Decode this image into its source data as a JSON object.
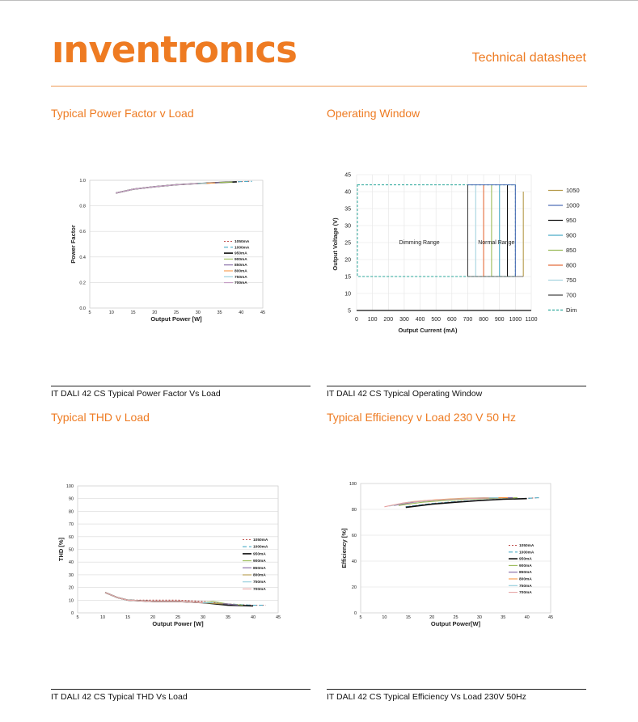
{
  "header": {
    "logo_text": "ınventronıcs",
    "doc_type": "Technical datasheet",
    "accent_color": "#ee7b22"
  },
  "sections": {
    "pf": {
      "title": "Typical Power Factor v Load",
      "caption": "IT DALI 42 CS Typical Power Factor Vs Load"
    },
    "ow": {
      "title": "Operating Window",
      "caption": "IT DALI 42 CS Typical Operating Window"
    },
    "thd": {
      "title": "Typical THD v Load",
      "caption": "IT DALI 42 CS Typical THD Vs Load"
    },
    "eff": {
      "title": "Typical Efficiency v Load 230 V 50 Hz",
      "caption": "IT DALI 42 CS Typical Efficiency Vs Load 230V 50Hz"
    }
  },
  "chart_data": [
    {
      "id": "pf",
      "type": "line",
      "xlabel": "Output Power [W]",
      "ylabel": "Power Factor",
      "xlim": [
        5,
        45
      ],
      "ylim": [
        0,
        1
      ],
      "xticks": [
        "5",
        "10",
        "15",
        "20",
        "25",
        "30",
        "35",
        "40",
        "45"
      ],
      "yticks": [
        "0.0",
        "0.2",
        "0.4",
        "0.6",
        "0.8",
        "1.0"
      ],
      "legend_position": "right",
      "series": [
        {
          "name": "1050mA",
          "color": "#c0504d",
          "dash": "2,2",
          "x": [
            11,
            15,
            20,
            25,
            30,
            35,
            40,
            42
          ],
          "y": [
            0.9,
            0.93,
            0.95,
            0.965,
            0.975,
            0.983,
            0.99,
            0.992
          ]
        },
        {
          "name": "1000mA",
          "color": "#4bacc6",
          "dash": "5,3",
          "x": [
            11,
            15,
            20,
            25,
            30,
            35,
            40,
            42.5
          ],
          "y": [
            0.9,
            0.93,
            0.95,
            0.965,
            0.975,
            0.983,
            0.99,
            0.992
          ]
        },
        {
          "name": "950mA",
          "color": "#111111",
          "dash": "",
          "x": [
            11,
            15,
            20,
            25,
            30,
            35,
            39
          ],
          "y": [
            0.9,
            0.93,
            0.95,
            0.965,
            0.975,
            0.983,
            0.988
          ]
        },
        {
          "name": "900mA",
          "color": "#9bbb59",
          "dash": "",
          "x": [
            11,
            15,
            20,
            25,
            30,
            35,
            38
          ],
          "y": [
            0.9,
            0.93,
            0.95,
            0.965,
            0.975,
            0.983,
            0.986
          ]
        },
        {
          "name": "850mA",
          "color": "#8064a2",
          "dash": "",
          "x": [
            11,
            15,
            20,
            25,
            30,
            35
          ],
          "y": [
            0.9,
            0.93,
            0.95,
            0.965,
            0.975,
            0.983
          ]
        },
        {
          "name": "800mA",
          "color": "#f79646",
          "dash": "",
          "x": [
            11,
            15,
            20,
            25,
            30,
            34
          ],
          "y": [
            0.9,
            0.93,
            0.95,
            0.965,
            0.975,
            0.98
          ]
        },
        {
          "name": "750mA",
          "color": "#92cddc",
          "dash": "",
          "x": [
            11,
            15,
            20,
            25,
            30,
            32
          ],
          "y": [
            0.9,
            0.93,
            0.95,
            0.965,
            0.975,
            0.977
          ]
        },
        {
          "name": "700mA",
          "color": "#c49ac4",
          "dash": "",
          "x": [
            11,
            15,
            20,
            25,
            30
          ],
          "y": [
            0.9,
            0.93,
            0.95,
            0.965,
            0.975
          ]
        }
      ]
    },
    {
      "id": "ow",
      "type": "line",
      "xlabel": "Output Current  (mA)",
      "ylabel": "Output Voltage  (V)",
      "xlim": [
        0,
        1100
      ],
      "ylim": [
        5,
        45
      ],
      "xticks": [
        "0",
        "100",
        "200",
        "300",
        "400",
        "500",
        "600",
        "700",
        "800",
        "900",
        "1000",
        "1100"
      ],
      "yticks": [
        "5",
        "10",
        "15",
        "20",
        "25",
        "30",
        "35",
        "40",
        "45"
      ],
      "grid": true,
      "legend_position": "right",
      "annotations": [
        "Dimming Range",
        "Normal Range"
      ],
      "dim_window": {
        "x": [
          0,
          1000
        ],
        "y": [
          15,
          42
        ]
      },
      "series": [
        {
          "name": "1050",
          "color": "#b59a4a",
          "x": 1050,
          "ylim": [
            15,
            40
          ]
        },
        {
          "name": "1000",
          "color": "#4f6fb7",
          "x": 1000,
          "ylim": [
            15,
            42
          ]
        },
        {
          "name": "950",
          "color": "#111111",
          "x": 950,
          "ylim": [
            15,
            42
          ]
        },
        {
          "name": "900",
          "color": "#4bacc6",
          "x": 900,
          "ylim": [
            15,
            42
          ]
        },
        {
          "name": "850",
          "color": "#9bbb59",
          "x": 850,
          "ylim": [
            15,
            42
          ]
        },
        {
          "name": "800",
          "color": "#e46c3a",
          "x": 800,
          "ylim": [
            15,
            42
          ]
        },
        {
          "name": "750",
          "color": "#a7d4e0",
          "x": 750,
          "ylim": [
            15,
            42
          ]
        },
        {
          "name": "700",
          "color": "#444444",
          "x": 700,
          "ylim": [
            15,
            42
          ]
        },
        {
          "name": "Dim",
          "color": "#2aa79b",
          "x": null,
          "ylim": [
            15,
            42
          ]
        }
      ]
    },
    {
      "id": "thd",
      "type": "line",
      "xlabel": "Output Power [W]",
      "ylabel": "THD [%]",
      "xlim": [
        5,
        45
      ],
      "ylim": [
        0,
        100
      ],
      "xticks": [
        "5",
        "10",
        "15",
        "20",
        "25",
        "30",
        "35",
        "40",
        "45"
      ],
      "yticks": [
        "0",
        "10",
        "20",
        "30",
        "40",
        "50",
        "60",
        "70",
        "80",
        "90",
        "100"
      ],
      "legend_position": "right",
      "series": [
        {
          "name": "1050mA",
          "color": "#c0504d",
          "dash": "2,2",
          "x": [
            10.5,
            13,
            15,
            20,
            25,
            30,
            35,
            40,
            42.5
          ],
          "y": [
            16,
            12,
            10,
            10,
            10,
            9,
            7,
            6,
            6
          ]
        },
        {
          "name": "1000mA",
          "color": "#4bacc6",
          "dash": "5,3",
          "x": [
            10.5,
            13,
            15,
            20,
            25,
            30,
            35,
            40,
            42.5
          ],
          "y": [
            16,
            12,
            10,
            9,
            9,
            8,
            7,
            6,
            6
          ]
        },
        {
          "name": "950mA",
          "color": "#111111",
          "dash": "",
          "x": [
            10.5,
            13,
            15,
            20,
            25,
            30,
            35,
            40
          ],
          "y": [
            16,
            12,
            10,
            9,
            9,
            8,
            6,
            5.5
          ]
        },
        {
          "name": "900mA",
          "color": "#9bbb59",
          "dash": "",
          "x": [
            10.5,
            13,
            15,
            20,
            25,
            30,
            32,
            35,
            38
          ],
          "y": [
            16,
            12,
            10,
            9,
            9,
            8,
            9,
            7,
            6
          ]
        },
        {
          "name": "850mA",
          "color": "#8064a2",
          "dash": "",
          "x": [
            10.5,
            13,
            15,
            20,
            25,
            30,
            35,
            37
          ],
          "y": [
            16,
            12,
            10,
            9,
            9,
            8,
            7,
            6
          ]
        },
        {
          "name": "800mA",
          "color": "#b59a4a",
          "dash": "",
          "x": [
            10.5,
            13,
            15,
            20,
            25,
            30,
            34
          ],
          "y": [
            16,
            12,
            10,
            9,
            9,
            8,
            7
          ]
        },
        {
          "name": "750mA",
          "color": "#92cddc",
          "dash": "",
          "x": [
            10.5,
            13,
            15,
            20,
            25,
            30,
            32
          ],
          "y": [
            16,
            12,
            10,
            9,
            9,
            8,
            8
          ]
        },
        {
          "name": "700mA",
          "color": "#e6a3a3",
          "dash": "",
          "x": [
            10.5,
            13,
            15,
            20,
            25,
            30
          ],
          "y": [
            16,
            12,
            10,
            9,
            9,
            8
          ]
        }
      ]
    },
    {
      "id": "eff",
      "type": "line",
      "xlabel": "Output Power[W]",
      "ylabel": "Efficiency [%]",
      "xlim": [
        5,
        45
      ],
      "ylim": [
        0,
        100
      ],
      "xticks": [
        "5",
        "10",
        "15",
        "20",
        "25",
        "30",
        "35",
        "40",
        "45"
      ],
      "yticks": [
        "0",
        "20",
        "40",
        "60",
        "80",
        "100"
      ],
      "legend_position": "right",
      "series": [
        {
          "name": "1050mA",
          "color": "#c0504d",
          "dash": "2,2",
          "x": [
            14.5,
            20,
            25,
            30,
            35,
            40,
            42.5
          ],
          "y": [
            82,
            84.5,
            86,
            87,
            88,
            88.5,
            89
          ]
        },
        {
          "name": "1000mA",
          "color": "#4bacc6",
          "dash": "5,3",
          "x": [
            14.5,
            20,
            25,
            30,
            35,
            40,
            42.5
          ],
          "y": [
            82,
            84.5,
            86,
            87,
            88,
            88.5,
            89
          ]
        },
        {
          "name": "950mA",
          "color": "#111111",
          "dash": "",
          "x": [
            14.5,
            20,
            25,
            30,
            35,
            40
          ],
          "y": [
            81.5,
            84,
            85.5,
            86.8,
            87.8,
            88.3
          ]
        },
        {
          "name": "900mA",
          "color": "#9bbb59",
          "dash": "",
          "x": [
            13,
            18,
            23,
            28,
            33,
            38
          ],
          "y": [
            83,
            85.5,
            87,
            88,
            88.5,
            89
          ]
        },
        {
          "name": "850mA",
          "color": "#8064a2",
          "dash": "",
          "x": [
            12,
            17,
            22,
            27,
            32,
            37
          ],
          "y": [
            83,
            86,
            87.5,
            88.3,
            88.8,
            89
          ]
        },
        {
          "name": "800mA",
          "color": "#f79646",
          "dash": "",
          "x": [
            11.5,
            16,
            21,
            26,
            31,
            36
          ],
          "y": [
            83,
            86,
            87.5,
            88.5,
            89,
            89
          ]
        },
        {
          "name": "750mA",
          "color": "#92cddc",
          "dash": "",
          "x": [
            11,
            15,
            20,
            25,
            30,
            34
          ],
          "y": [
            82.5,
            85.5,
            87,
            88,
            88.8,
            89
          ]
        },
        {
          "name": "700mA",
          "color": "#e6a3a3",
          "dash": "",
          "x": [
            10,
            14,
            19,
            24,
            29,
            32
          ],
          "y": [
            82,
            85,
            86.8,
            87.8,
            88.5,
            88.8
          ]
        }
      ]
    }
  ]
}
